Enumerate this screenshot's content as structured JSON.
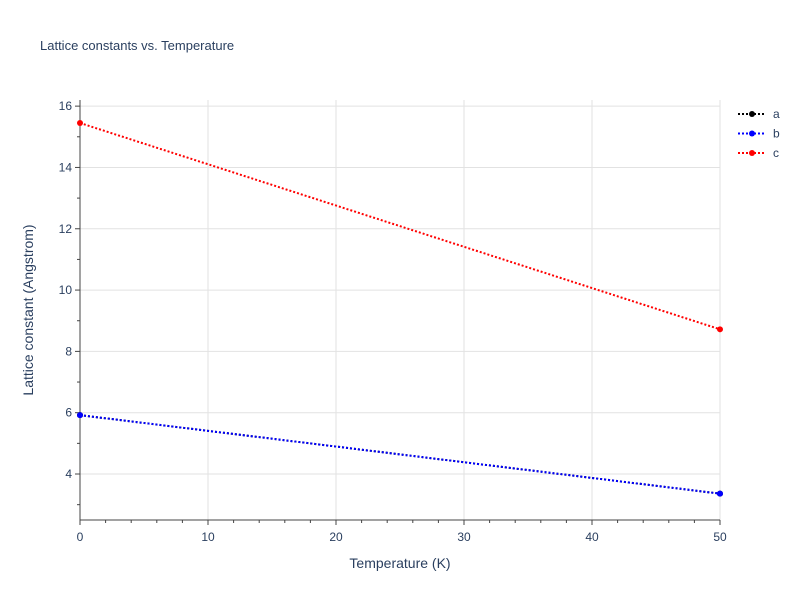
{
  "chart_data": {
    "type": "line",
    "title": "Lattice constants vs. Temperature",
    "xlabel": "Temperature (K)",
    "ylabel": "Lattice constant (Angstrom)",
    "xlim": [
      0,
      50
    ],
    "ylim": [
      2.5,
      16.2
    ],
    "xticks": [
      0,
      10,
      20,
      30,
      40,
      50
    ],
    "yticks": [
      4,
      6,
      8,
      10,
      12,
      14,
      16
    ],
    "grid": true,
    "legend_position": "top-right",
    "series": [
      {
        "name": "a",
        "color": "#000000",
        "line_style": "dotted",
        "x": [
          0,
          50
        ],
        "y": [
          5.92,
          3.36
        ]
      },
      {
        "name": "b",
        "color": "#0000ff",
        "line_style": "dotted",
        "x": [
          0,
          50
        ],
        "y": [
          5.92,
          3.36
        ]
      },
      {
        "name": "c",
        "color": "#ff0000",
        "line_style": "dotted",
        "x": [
          0,
          50
        ],
        "y": [
          15.45,
          8.72
        ]
      }
    ]
  }
}
